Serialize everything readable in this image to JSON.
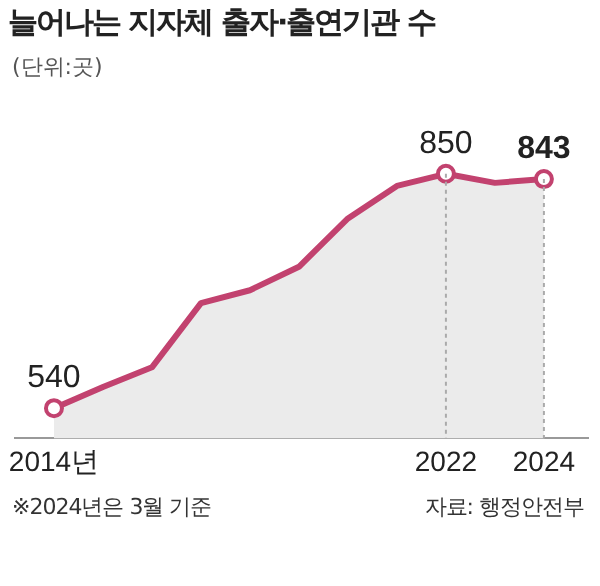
{
  "chart_data": {
    "type": "area",
    "title": "늘어나는 지자체 출자·출연기관 수",
    "subtitle": "(단위:곳)",
    "x": [
      2014,
      2015,
      2016,
      2017,
      2018,
      2019,
      2020,
      2021,
      2022,
      2023,
      2024
    ],
    "series": [
      {
        "color": "#c2426f",
        "values": [
          540,
          568,
          594,
          679,
          696,
          727,
          791,
          834,
          850,
          838,
          843
        ],
        "value_labels": [
          "540",
          null,
          null,
          null,
          null,
          null,
          null,
          null,
          "850",
          null,
          "843"
        ]
      }
    ],
    "xlim": [
      2013.2,
      2024.9
    ],
    "xticks": [
      {
        "value": 2014,
        "label": "2014년"
      },
      2022,
      2024
    ],
    "tick_labels": "x",
    "grid": false,
    "legend": false,
    "ref_lines": [
      {
        "axis": "x",
        "value": 2022,
        "line_style": "dotted",
        "color": "#aaaaaa"
      },
      {
        "axis": "x",
        "value": 2024,
        "line_style": "dotted",
        "color": "#aaaaaa"
      }
    ],
    "annotations": [
      "※2024년은 3월 기준",
      "자료: 행정안전부"
    ]
  }
}
